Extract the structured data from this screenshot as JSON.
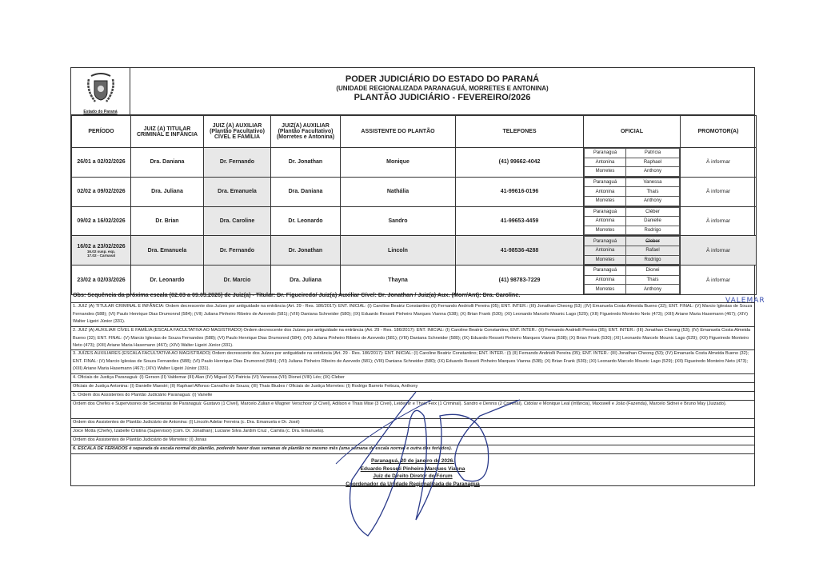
{
  "header": {
    "logo_caption": "Estado do Paraná",
    "title": "PODER JUDICIÁRIO DO ESTADO DO PARANÁ",
    "subtitle": "(UNIDADE REGIONALIZADA PARANAGUÁ, MORRETES E ANTONINA)",
    "heading": "PLANTÃO JUDICIÁRIO - FEVEREIRO/2026"
  },
  "columns": [
    "PERÍODO",
    "JUIZ (A) TITULAR CRIMINAL E INFÂNCIA",
    "JUIZ (A) AUXILIAR (Plantão Facultativo) CÍVEL E FAMÍLIA",
    "JUIZ(A) AUXILIAR (Plantão Facultativo) (Morretes e Antonina)",
    "ASSISTENTE DO PLANTÃO",
    "TELEFONES",
    "OFICIAL",
    "PROMOTOR(A)"
  ],
  "rows": [
    {
      "period": "26/01 a 02/02/2026",
      "note1": "",
      "note2": "",
      "titular": "Dra. Daniana",
      "aux_civel": "Dr. Fernando",
      "aux_morretes": "Dr. Jonathan",
      "assistente": "Monique",
      "telefone": "(41) 99662-4042",
      "oficiais": [
        [
          "Paranaguá",
          "Patrícia"
        ],
        [
          "Antonina",
          "Raphael"
        ],
        [
          "Morretes",
          "Anthony"
        ]
      ],
      "promotor": "À informar"
    },
    {
      "period": "02/02 a 09/02/2026",
      "note1": "",
      "note2": "",
      "titular": "Dra. Juliana",
      "aux_civel": "Dra. Emanuela",
      "aux_morretes": "Dra. Daniana",
      "assistente": "Nathália",
      "telefone": "41-99616-0196",
      "oficiais": [
        [
          "Paranaguá",
          "Vanessa"
        ],
        [
          "Antonina",
          "Thaís"
        ],
        [
          "Morretes",
          "Anthony"
        ]
      ],
      "promotor": "À informar"
    },
    {
      "period": "09/02 a 16/02/2026",
      "note1": "",
      "note2": "",
      "titular": "Dr. Brian",
      "aux_civel": "Dra. Caroline",
      "aux_morretes": "Dr. Leonardo",
      "assistente": "Sandro",
      "telefone": "41-99653-4459",
      "oficiais": [
        [
          "Paranaguá",
          "Cléber"
        ],
        [
          "Antonina",
          "Danielle"
        ],
        [
          "Morretes",
          "Rodrigo"
        ]
      ],
      "promotor": "À informar"
    },
    {
      "period": "16/02 a 23/02/2026",
      "note1": "16.02 susp. exp.",
      "note2": "17.02 - Carnaval",
      "titular": "Dra. Emanuela",
      "aux_civel": "Dr. Fernando",
      "aux_morretes": "Dr. Jonathan",
      "assistente": "Lincoln",
      "telefone": "41-98536-4288",
      "oficiais": [
        [
          "Paranaguá",
          "Cleber"
        ],
        [
          "Antonina",
          "Rafael"
        ],
        [
          "Morretes",
          "Rodrigo"
        ]
      ],
      "promotor": "À informar"
    },
    {
      "period": "23/02 a 02/03/2026",
      "note1": "",
      "note2": "",
      "titular": "Dr. Leonardo",
      "aux_civel": "Dr. Marcio",
      "aux_morretes": "Dra. Juliana",
      "assistente": "Thayna",
      "telefone": "(41) 98783-7229",
      "oficiais": [
        [
          "Paranaguá",
          "Dionei"
        ],
        [
          "Antonina",
          "Thaís"
        ],
        [
          "Morretes",
          "Anthony"
        ]
      ],
      "promotor": "À informar"
    }
  ],
  "handwritten_correction": "VALEMAR",
  "obs": "Obs: Sequência da próxima escala (02.03 a 09.03.2026) de Juiz(a) - Titular:  Dr. Figueiredo/  Juiz(a) Auxiliar Cível: Dr. Jonathan / Juiz(a) Aux. (Morr/Ant): Dra. Caroline.",
  "notes": [
    "1. JUIZ (A) TITULAR CRIMINAL E INFÂNCIA: Ordem decrescente dos Juízes por antiguidade na entrância (Art. 29 - Res. 186/2017): ENT. INICIAL: (I) Caroline Beatriz Constantino (II) Fernando Andriolli Pereira (05); ENT. INTER.: (III) Jonathan Cheong (53) ;(IV) Emanuela Costa Almeida Bueno (32); ENT. FINAL: (V) Marcio Iglesias de Souza Fernandes (588); (VI) Paulo Henrique Dias Drumonnd (584); (VII) Juliana Pinheiro Ribeiro de Azevedo (581); (VIII) Daniana Schneider (580); (IX) Eduardo Resseti Pinheiro Marques Vianna (538); (X) Brian Frank (530); (XI) Leonardo Marcelo Mounic Lago (529); (XII) Figueiredo Monteiro Neto (473); (XIII) Ariane Maria Hasemann (467); (XIV) Walter Ligeiri Júnior (331).",
    "2. JUIZ (A) AUXILIAR CÍVEL E FAMÍLIA (ESCALA FACULTATIVA AO MAGISTRADO) Ordem decrescente dos Juízes por antiguidade na entrância (Art. 29 - Res. 186/2017): ENT. INICIAL: (I) Caroline Beatriz Constantino; ENT. INTER.: (II) Fernando Andriolli Pereira (05); ENT. INTER.: (III) Jonathan Cheong (53); (IV) Emanuela Costa Almeida Bueno (32); ENT. FINAL: (V) Marcio Iglesias de Souza Fernandes (588); (VI) Paulo Henrique Dias Drumonnd (584); (VII) Juliana Pinheiro Ribeiro de Azevedo (581); (VIII) Daniana Schneider (580); (IX) Eduardo Resseti Pinheiro Marques Vianna (538); (X) Brian Frank (530); (XI) Leonardo Marcelo Mounic Lago (529); (XII) Figueiredo Monteiro Neto (473); (XIII) Ariane Maria Hasemann (467); (XIV) Walter Ligeiri Júnior (331).",
    "3. JUÍZES AUXILIARES (ESCALA FACULTATIVA AO MAGISTRADO) Ordem decrescente dos Juízes por antiguidade na entrância (Art. 29 - Res. 186/2017): ENT. INICIAL: (I) Caroline Beatriz Constantino; ENT. INTER.: (I) (II) Fernando Andriolli Pereira (05); ENT. INTER.: (III) Jonathan Cheong (53); (IV) Emanuela Costa Almeida Bueno (32); ENT. FINAL: (V) Marcio Iglesias de Souza Fernandes (588); (VI) Paulo Henrique Dias Drumonnd (584); (VII) Juliana Pinheiro Ribeiro de Azevedo (581); (VIII) Daniana Schneider (580); (IX) Eduardo Resseti Pinheiro Marques Vianna (538); (X) Brian Frank (530); (XI) Leonardo Marcelo Mounic Lago (529); (XII) Figueiredo Monteiro Neto (473); (XIII) Ariane Maria Hasemann (467); (XIV) Walter Ligeiri Júnior (331).",
    "4. Oficiais de Justiça Paranaguá: (I) Gerson (II) Valdemar (III) Alan (IV) Miguel (V) Patricia (VI) Vanessa (VII) Dionei (VIII) Léo; (IX) Cleber",
    "Oficiais de Justiça Antonina: (I) Danielle Maestri; (II) Raphael Affonso Carvalho de Souza; (III) Thais Biudes / Oficiais de Justiça Morretes: (I) Rodrigo Barreto Feitoza, Anthony",
    "5. Ordem dos Assistentes do Plantão Judiciário Paranaguá: (I) Vanelle",
    "Ordem dos Chefes e Supervisores de Secretarias de Paranaguá: Gustavo (1 Cível), Marcelo Zulian e Wagner Verschoor (2 Cível), Adilson e Thais Mise (3 Cível), Leidemir e Thais Feix (1 Criminal). Sandro e Dennis (2 Criminal),  Cidolar e Monique Leal (Infância), Maxswell e João (Fazenda), Marcelo Sidnei e Bruno May (Juizado).",
    "Ordem dos Assistentes de Plantão Judiciário de Antonina: (I) Lincoln Adelar Ferreira (c. Dra. Emanuela e Dr. José)",
    "Joice Motta (Chefe), Izabelle Cristina (Supervisor) (com. Dr. Jonathan); Luciane Silva Jardim Cruz , Camila (c. Dra. Emanuela).",
    "Ordem dos Assistentes de Plantão Judiciário de Morretes: (I) Jonas",
    "6. ESCALA DE FERIADOS é separada da escala normal do plantão, podendo haver duas semanas de plantão no mesmo mês (uma semana de escala normal e outra dos feriados)."
  ],
  "signature": {
    "place_date": "Paranaguá, 20 de janeiro de 2026.",
    "name": "Eduardo Resseti Pinheiro Marques Vianna",
    "role": "Juiz de Direito Diretor do Fórum",
    "unit": "Coordenador da Unidade Regionalizada de Paranaguá"
  }
}
